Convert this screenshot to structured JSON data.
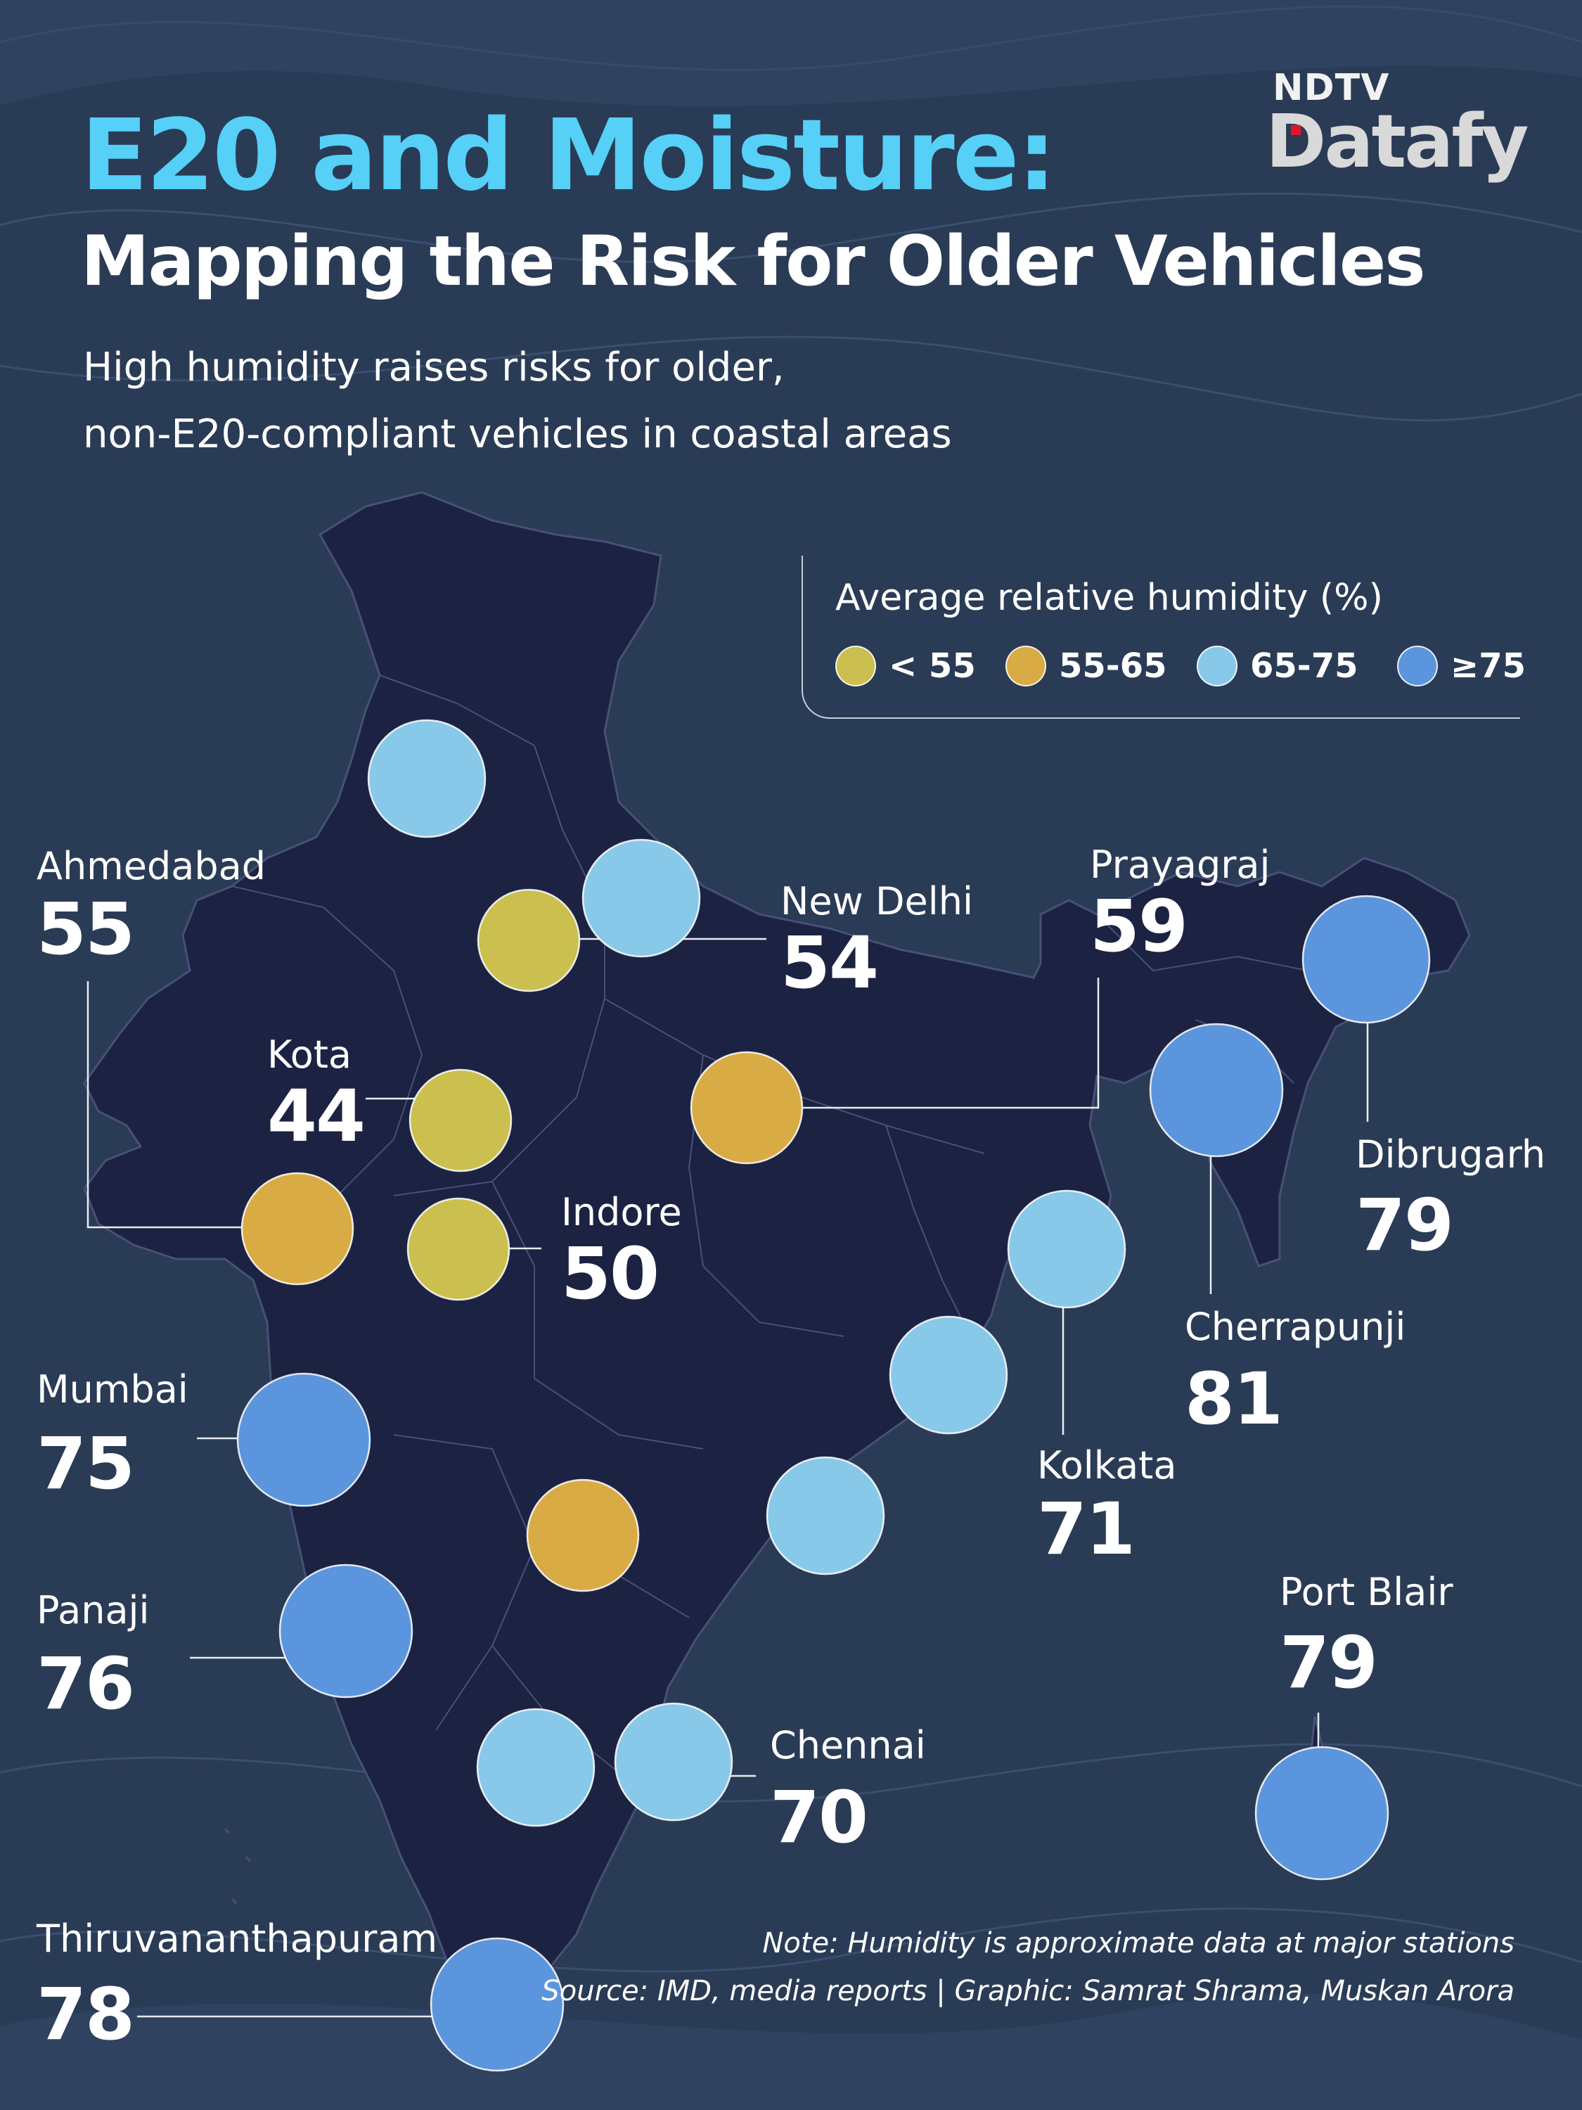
{
  "header": {
    "title": "E20 and Moisture:",
    "subtitle": "Mapping the Risk for Older Vehicles",
    "description_lines": [
      "High humidity raises risks for older,",
      "non-E20-compliant vehicles in coastal areas"
    ]
  },
  "brand": {
    "top": "NDTV",
    "bottom": "Datafy"
  },
  "legend": {
    "title": "Average relative humidity (%)",
    "items": [
      {
        "label": "< 55",
        "color": "#cbbf4f"
      },
      {
        "label": "55-65",
        "color": "#d9ab45"
      },
      {
        "label": "65-75",
        "color": "#88c9ea"
      },
      {
        "label": "≥75",
        "color": "#5b95dd"
      }
    ]
  },
  "cities": [
    {
      "name": "Ahmedabad",
      "value": "55"
    },
    {
      "name": "New Delhi",
      "value": "54"
    },
    {
      "name": "Prayagraj",
      "value": "59"
    },
    {
      "name": "Kota",
      "value": "44"
    },
    {
      "name": "Indore",
      "value": "50"
    },
    {
      "name": "Dibrugarh",
      "value": "79"
    },
    {
      "name": "Cherrapunji",
      "value": "81"
    },
    {
      "name": "Mumbai",
      "value": "75"
    },
    {
      "name": "Kolkata",
      "value": "71"
    },
    {
      "name": "Panaji",
      "value": "76"
    },
    {
      "name": "Port Blair",
      "value": "79"
    },
    {
      "name": "Chennai",
      "value": "70"
    },
    {
      "name": "Thiruvananthapuram",
      "value": "78"
    }
  ],
  "footer": {
    "note": "Note: Humidity is approximate data at major stations",
    "source": "Source: IMD, media reports | Graphic: Samrat Shrama, Muskan Arora"
  }
}
